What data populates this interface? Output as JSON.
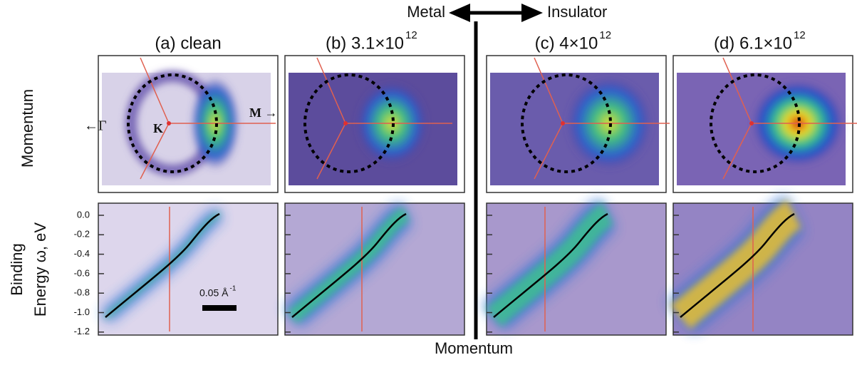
{
  "header": {
    "left": "Metal",
    "right": "Insulator"
  },
  "panels": [
    {
      "label": "(a) clean"
    },
    {
      "label": "(b) 3.1×10",
      "exponent": "12"
    },
    {
      "label": "(c) 4×10",
      "exponent": "12"
    },
    {
      "label": "(d) 6.1×10",
      "exponent": "12"
    }
  ],
  "row_labels": {
    "top": "Momentum",
    "bottom_line1": "Binding",
    "bottom_line2": "Energy ω, eV"
  },
  "yticks": [
    "0.0",
    "-0.2",
    "-0.4",
    "-0.6",
    "-0.8",
    "-1.0",
    "-1.2"
  ],
  "points": {
    "gamma": "←Γ",
    "k": "K",
    "m": "M →"
  },
  "scale_bar": {
    "label": "0.05 Å",
    "exponent": "-1"
  },
  "x_label": "Momentum"
}
